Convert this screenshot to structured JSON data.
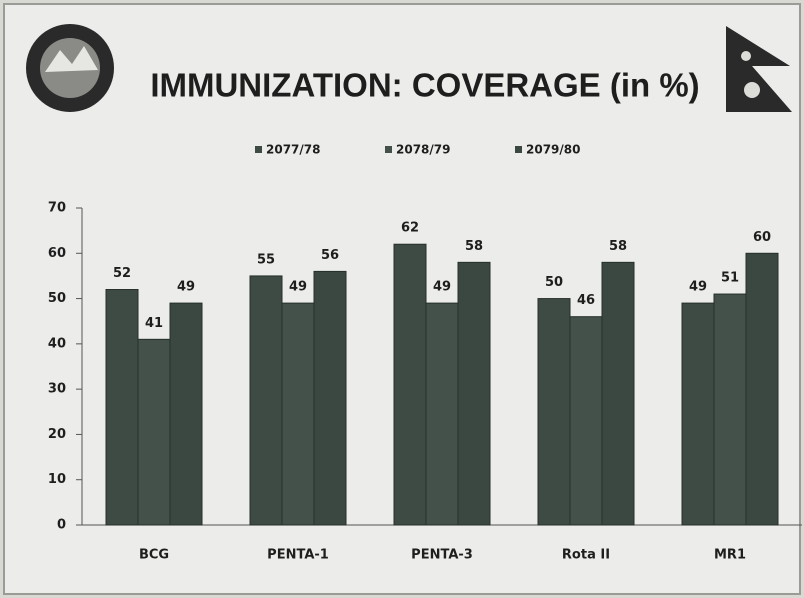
{
  "chart_data": {
    "type": "bar",
    "title": "IMMUNIZATION: COVERAGE (in %)",
    "categories": [
      "BCG",
      "PENTA-1",
      "PENTA-3",
      "Rota II",
      "MR1"
    ],
    "series": [
      {
        "name": "2077/78",
        "color": "#3e4a44",
        "values": [
          52,
          55,
          62,
          50,
          49
        ]
      },
      {
        "name": "2078/79",
        "color": "#44504a",
        "values": [
          41,
          49,
          49,
          46,
          51
        ]
      },
      {
        "name": "2079/80",
        "color": "#3b4842",
        "values": [
          49,
          56,
          58,
          58,
          60
        ]
      }
    ],
    "ylim": [
      0,
      70
    ],
    "yticks": [
      0,
      10,
      20,
      30,
      40,
      50,
      60,
      70
    ],
    "grid": false,
    "legend": "top"
  }
}
